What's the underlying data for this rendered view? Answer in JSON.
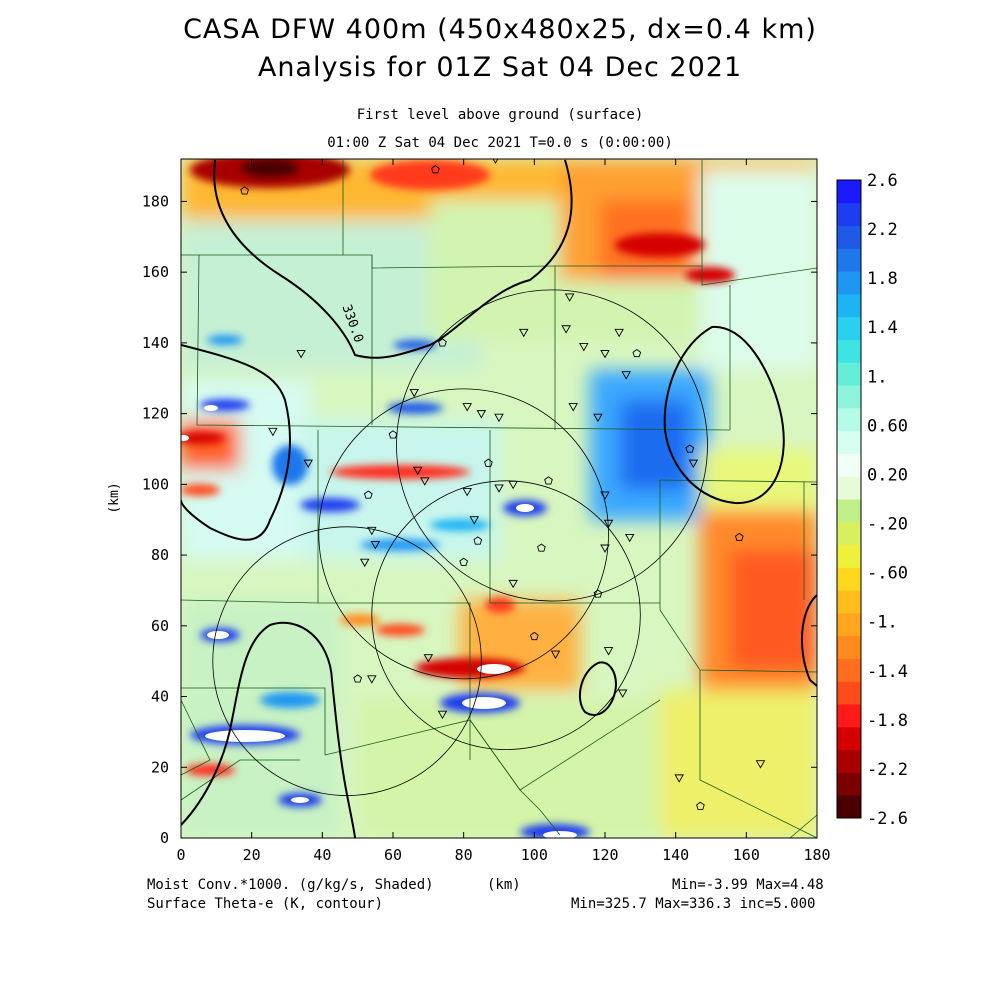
{
  "header": {
    "title_line1": "CASA DFW 400m (450x480x25, dx=0.4 km)",
    "title_line2": "Analysis for 01Z Sat 04 Dec 2021",
    "level_label": "First level above ground (surface)",
    "time_label": "01:00 Z Sat 04 Dec 2021    T=0.0 s (0:00:00)"
  },
  "footer": {
    "shaded_field": "Moist Conv.*1000. (g/kg/s, Shaded)",
    "x_unit": "(km)",
    "shaded_range": "Min=-3.99 Max=4.48",
    "contour_field": "Surface Theta-e (K, contour)",
    "contour_range": "Min=325.7 Max=336.3 inc=5.000"
  },
  "chart_data": {
    "type": "heatmap",
    "xlabel": "(km)",
    "ylabel": "(km)",
    "xlim": [
      0,
      180
    ],
    "ylim": [
      0,
      192
    ],
    "x_ticks": [
      0,
      20,
      40,
      60,
      80,
      100,
      120,
      140,
      160,
      180
    ],
    "y_ticks": [
      0,
      20,
      40,
      60,
      80,
      100,
      120,
      140,
      160,
      180
    ],
    "contour_label": "330.0",
    "colorbar": {
      "labels": [
        "2.6",
        "2.2",
        "1.8",
        "1.4",
        "1.",
        "0.60",
        "0.20",
        "-.20",
        "-.60",
        "-1.",
        "-1.4",
        "-1.8",
        "-2.2",
        "-2.6"
      ],
      "min": -2.6,
      "max": 2.6,
      "colors": [
        "#4a0000",
        "#7a0000",
        "#a80000",
        "#d40000",
        "#ff1a1a",
        "#ff4a1a",
        "#ff6e1e",
        "#ff8a1e",
        "#ffa51e",
        "#ffbe1e",
        "#ffd81e",
        "#eef03c",
        "#d8f060",
        "#c0f08a",
        "#e6fcd8",
        "#f2fff6",
        "#d6fff2",
        "#b4fbe8",
        "#8ef5dc",
        "#64eeda",
        "#3ee4e4",
        "#2ad0f0",
        "#1eb4f4",
        "#1e96f4",
        "#1e78ec",
        "#1e5ae6",
        "#1e3cf0",
        "#1a1aff"
      ]
    },
    "radar_rings_km": [
      {
        "cx": 105,
        "cy": 111,
        "r": 44
      },
      {
        "cx": 80,
        "cy": 86,
        "r": 41
      },
      {
        "cx": 92,
        "cy": 63,
        "r": 38
      },
      {
        "cx": 47,
        "cy": 50,
        "r": 38
      }
    ],
    "stations": [
      [
        18,
        183,
        "p"
      ],
      [
        72,
        189,
        "p"
      ],
      [
        89,
        192,
        "t"
      ],
      [
        110,
        153,
        "t"
      ],
      [
        97,
        143,
        "t"
      ],
      [
        109,
        144,
        "t"
      ],
      [
        114,
        139,
        "t"
      ],
      [
        120,
        137,
        "t"
      ],
      [
        124,
        143,
        "t"
      ],
      [
        129,
        137,
        "p"
      ],
      [
        126,
        131,
        "t"
      ],
      [
        74,
        140,
        "p"
      ],
      [
        34,
        137,
        "t"
      ],
      [
        66,
        126,
        "t"
      ],
      [
        81,
        122,
        "t"
      ],
      [
        85,
        120,
        "t"
      ],
      [
        90,
        119,
        "t"
      ],
      [
        111,
        122,
        "t"
      ],
      [
        118,
        119,
        "t"
      ],
      [
        26,
        115,
        "t"
      ],
      [
        60,
        114,
        "p"
      ],
      [
        36,
        106,
        "t"
      ],
      [
        87,
        106,
        "p"
      ],
      [
        67,
        104,
        "t"
      ],
      [
        69,
        101,
        "t"
      ],
      [
        81,
        98,
        "t"
      ],
      [
        90,
        99,
        "t"
      ],
      [
        94,
        100,
        "t"
      ],
      [
        104,
        101,
        "p"
      ],
      [
        120,
        97,
        "t"
      ],
      [
        53,
        97,
        "p"
      ],
      [
        83,
        90,
        "t"
      ],
      [
        121,
        89,
        "t"
      ],
      [
        127,
        85,
        "t"
      ],
      [
        54,
        87,
        "t"
      ],
      [
        55,
        83,
        "t"
      ],
      [
        84,
        84,
        "p"
      ],
      [
        102,
        82,
        "p"
      ],
      [
        120,
        82,
        "t"
      ],
      [
        52,
        78,
        "t"
      ],
      [
        80,
        78,
        "p"
      ],
      [
        94,
        72,
        "t"
      ],
      [
        118,
        69,
        "p"
      ],
      [
        100,
        57,
        "p"
      ],
      [
        70,
        51,
        "t"
      ],
      [
        106,
        52,
        "t"
      ],
      [
        121,
        53,
        "t"
      ],
      [
        50,
        45,
        "p"
      ],
      [
        54,
        45,
        "t"
      ],
      [
        125,
        41,
        "t"
      ],
      [
        74,
        35,
        "t"
      ],
      [
        141,
        17,
        "t"
      ],
      [
        164,
        21,
        "t"
      ],
      [
        147,
        9,
        "p"
      ],
      [
        158,
        85,
        "p"
      ],
      [
        145,
        106,
        "t"
      ],
      [
        144,
        110,
        "p"
      ]
    ]
  }
}
